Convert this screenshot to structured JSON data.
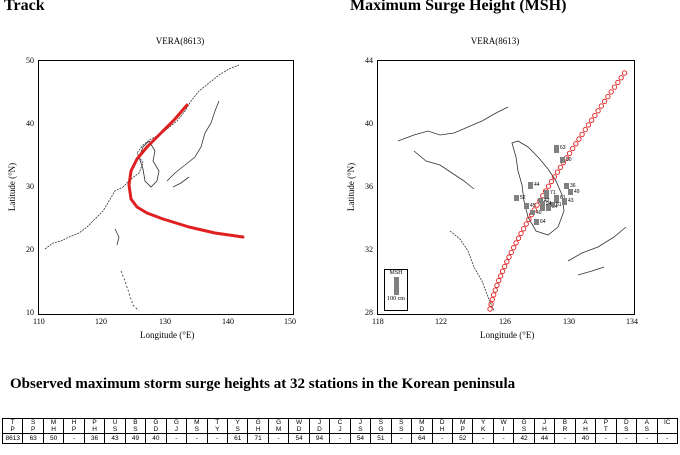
{
  "headings": {
    "track": "Track",
    "msh": "Maximum Surge Height (MSH)",
    "table": "Observed maximum storm surge heights at 32 stations in the Korean peninsula"
  },
  "track_map": {
    "title": "VERA(8613)",
    "xlabel": "Longitude (°E)",
    "ylabel": "Latitude (°N)",
    "x_ticks": [
      "110",
      "120",
      "130",
      "140",
      "150"
    ],
    "y_ticks": [
      "50",
      "40",
      "30",
      "20",
      "10"
    ],
    "track_color": "#e02020"
  },
  "msh_map": {
    "title": "VERA(8613)",
    "xlabel": "Longitude (°E)",
    "ylabel": "Latitude (°N)",
    "x_ticks": [
      "118",
      "122",
      "126",
      "130",
      "134"
    ],
    "y_ticks": [
      "44",
      "40",
      "36",
      "32",
      "28"
    ],
    "legend_title": "MSH",
    "legend_scale": "100 cm",
    "bar_color": "#808080",
    "track_color": "#e02020",
    "bar_labels": [
      "63",
      "50",
      "44",
      "36",
      "52",
      "71",
      "61",
      "43",
      "49",
      "54",
      "64",
      "45",
      "40",
      "42",
      "51",
      "94"
    ]
  },
  "table": {
    "stations": [
      [
        "T",
        "P"
      ],
      [
        "S",
        "P"
      ],
      [
        "M",
        "H"
      ],
      [
        "H",
        "P"
      ],
      [
        "P",
        "H"
      ],
      [
        "U",
        "S"
      ],
      [
        "B",
        "S"
      ],
      [
        "G",
        "D"
      ],
      [
        "G",
        "J"
      ],
      [
        "M",
        "S"
      ],
      [
        "T",
        "Y"
      ],
      [
        "Y",
        "S"
      ],
      [
        "G",
        "H"
      ],
      [
        "G",
        "M"
      ],
      [
        "W",
        "D"
      ],
      [
        "J",
        "D"
      ],
      [
        "C",
        "J"
      ],
      [
        "J",
        "S"
      ],
      [
        "S",
        "G"
      ],
      [
        "S",
        "S"
      ],
      [
        "M",
        "D"
      ],
      [
        "D",
        "H"
      ],
      [
        "M",
        "P"
      ],
      [
        "Y",
        "K"
      ],
      [
        "W",
        "I"
      ],
      [
        "G",
        "S"
      ],
      [
        "J",
        "H"
      ],
      [
        "B",
        "R"
      ],
      [
        "A",
        "H"
      ],
      [
        "P",
        "T"
      ],
      [
        "D",
        "S"
      ],
      [
        "A",
        "S"
      ],
      [
        "IC",
        ""
      ]
    ],
    "values": [
      "8613",
      "63",
      "50",
      "-",
      "36",
      "43",
      "49",
      "40",
      "-",
      "-",
      "-",
      "61",
      "71",
      "-",
      "54",
      "94",
      "-",
      "54",
      "51",
      "-",
      "64",
      "-",
      "52",
      "-",
      "-",
      "42",
      "44",
      "-",
      "40",
      "-",
      "-",
      "-",
      "-"
    ]
  }
}
